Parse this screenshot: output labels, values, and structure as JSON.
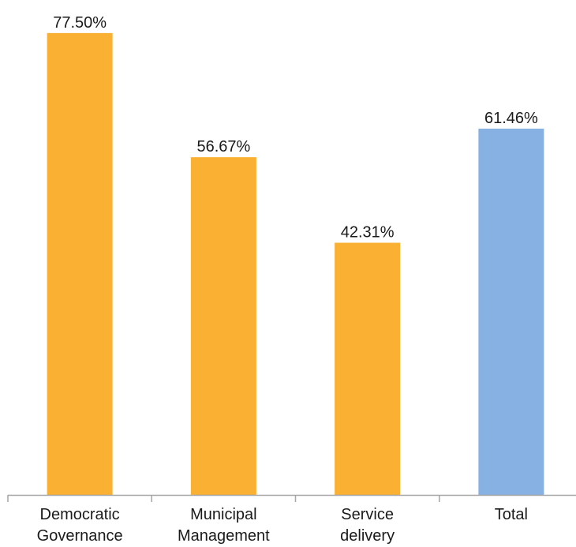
{
  "chart_data": {
    "type": "bar",
    "title": "",
    "xlabel": "",
    "ylabel": "",
    "ylim": [
      0,
      80
    ],
    "grid": false,
    "legend": "none",
    "categories": [
      [
        "Democratic",
        "Governance"
      ],
      [
        "Municipal",
        "Management"
      ],
      [
        "Service",
        "delivery"
      ],
      [
        "Total"
      ]
    ],
    "values": [
      77.5,
      56.67,
      42.31,
      61.46
    ],
    "data_labels": [
      "77.50%",
      "56.67%",
      "42.31%",
      "61.46%"
    ],
    "bar_colors": [
      "#F9B033",
      "#F9B033",
      "#F9B033",
      "#86B1E2"
    ],
    "axis_color": "#A6A6A6"
  }
}
